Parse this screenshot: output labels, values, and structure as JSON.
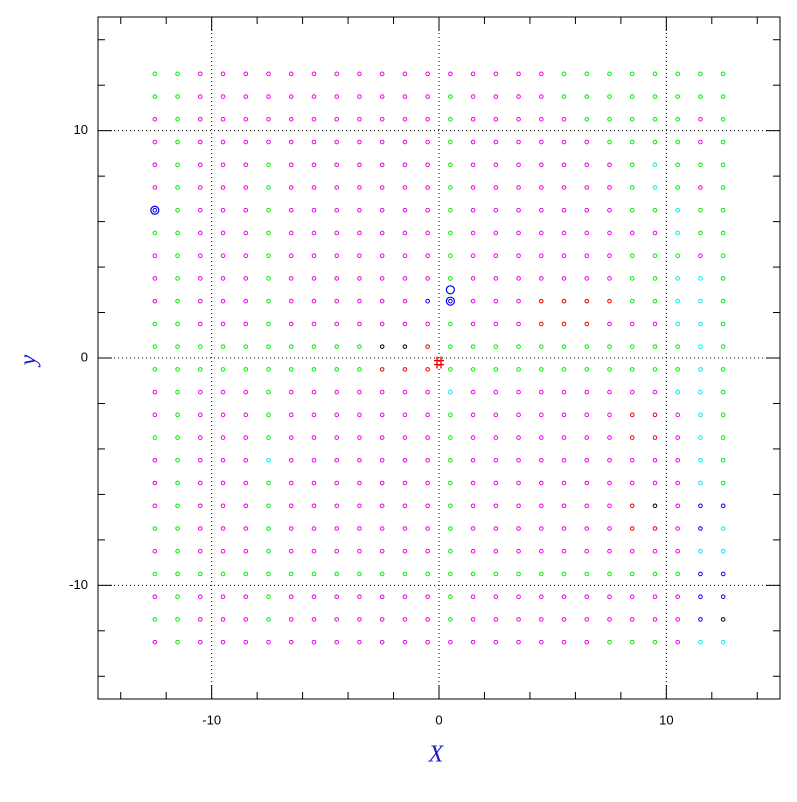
{
  "chart_data": {
    "type": "scatter",
    "xlabel": "X",
    "ylabel": "y",
    "xlim": [
      -15,
      15
    ],
    "ylim": [
      -15,
      15
    ],
    "xticks": [
      -10,
      0,
      10
    ],
    "yticks": [
      -10,
      0,
      10
    ],
    "xminorticks": [
      -14,
      -12,
      -8,
      -6,
      -4,
      -2,
      2,
      4,
      6,
      8,
      12,
      14
    ],
    "yminorticks": [
      -14,
      -12,
      -8,
      -6,
      -4,
      -2,
      2,
      4,
      6,
      8,
      12,
      14
    ],
    "grid": true,
    "point_colors": {
      "g": "#00ee00",
      "m": "#ee00ee",
      "c": "#00eeee",
      "r": "#ee0000",
      "b": "#0000ee",
      "k": "#000000"
    },
    "grid_points": {
      "x": [
        -12.5,
        -11.5,
        -10.5,
        -9.5,
        -8.5,
        -7.5,
        -6.5,
        -5.5,
        -4.5,
        -3.5,
        -2.5,
        -1.5,
        -0.5,
        0.5,
        1.5,
        2.5,
        3.5,
        4.5,
        5.5,
        6.5,
        7.5,
        8.5,
        9.5,
        10.5,
        11.5,
        12.5
      ],
      "y": [
        12.5,
        11.5,
        10.5,
        9.5,
        8.5,
        7.5,
        6.5,
        5.5,
        4.5,
        3.5,
        2.5,
        1.5,
        0.5,
        -0.5,
        -1.5,
        -2.5,
        -3.5,
        -4.5,
        -5.5,
        -6.5,
        -7.5,
        -8.5,
        -9.5,
        -10.5,
        -11.5,
        -12.5
      ],
      "rows": [
        "ggmmmmmmmmmmmmmmmmgggggggg",
        "ggmmmmmmmmmmmgmmmmgggggggg",
        "mgmmmmmmmmmmmgmmmmmgggggmg",
        "mgmmmmmmmmmmmgmmmmmmggggmg",
        "mgmmmgmmmmmmmgmmmmmmmgcggg",
        "mgmmmgmmmmmmmgmmmmmmmgcgmg",
        "bgmmmgmmmmmmmgmmmmmmmggcgg",
        "ggmmmgmmmmmmmgmmmmmmmmmcgg",
        "mgmmmgmmmmmmmgmmmmmmmgggmg",
        "mgmmmgmmmmmmmgmmmmmmmggccg",
        "mgmmmgmmmmmmbbmmmrrrrggccg",
        "ggmmmgmmmmmmmgmmmrrrmmmccg",
        "ggggggggggkkrgggggggggggcg",
        "ggggggggggrrrgggggggggggcg",
        "mgmmmgmmmmmmmcmmmmmmmmmccg",
        "mgmmmgmmmmmmmgmmmmmmmrrmcg",
        "ggmmmgmmmmmmmgmmmmmmmrrmcg",
        "mgmmmcmmmmmmmgmmmmmmmmmmcg",
        "mgmmmgmmmmmmmgmmmmmmmmmmcg",
        "mgmmmgmmmmmmmgmmmmmmmrkmbb",
        "ggmmmgmmmmmmmgmmmmmmmrrmbc",
        "mgmmmgmmmmmmmgmmmmmmmmmmcc",
        "ggggggggggggggggggggggggbb",
        "mgmmmgmmmmmmmgmmmmmmmmmmbb",
        "ggmmmgmmmmmmmgmmmmmmmmmmbk",
        "mgmmmmmmmmmmmmmmmmmmgggmcc"
      ]
    },
    "highlights": {
      "color": "#0000ee",
      "x": [
        -12.5,
        0.5,
        0.5
      ],
      "y": [
        6.5,
        3,
        2.5
      ]
    },
    "marker": {
      "color": "#ee0000",
      "x": [
        0
      ],
      "y": [
        -0.2
      ]
    }
  }
}
